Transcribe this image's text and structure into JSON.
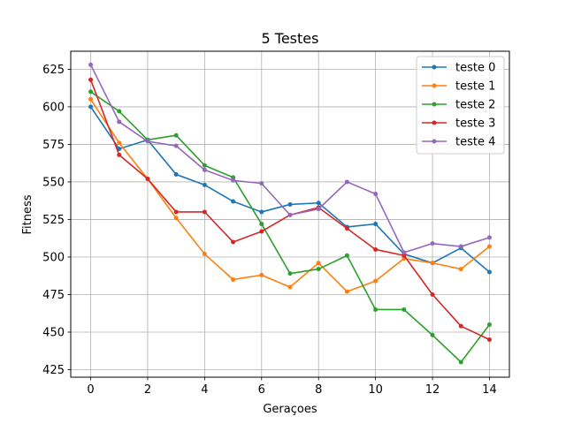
{
  "chart_data": {
    "type": "line",
    "title": "5 Testes",
    "xlabel": "Geraçoes",
    "ylabel": "Fitness",
    "xlim": [
      -0.7,
      14.7
    ],
    "ylim": [
      420,
      637
    ],
    "xticks": [
      0,
      2,
      4,
      6,
      8,
      10,
      12,
      14
    ],
    "yticks": [
      425,
      450,
      475,
      500,
      525,
      550,
      575,
      600,
      625
    ],
    "grid": true,
    "legend_position": "top-right",
    "x": [
      0,
      1,
      2,
      3,
      4,
      5,
      6,
      7,
      8,
      9,
      10,
      11,
      12,
      13,
      14
    ],
    "series": [
      {
        "name": "teste 0",
        "color": "#1f77b4",
        "values": [
          600,
          572,
          578,
          555,
          548,
          537,
          530,
          535,
          536,
          520,
          522,
          502,
          496,
          506,
          490
        ]
      },
      {
        "name": "teste 1",
        "color": "#ff7f0e",
        "values": [
          605,
          576,
          552,
          526,
          502,
          485,
          488,
          480,
          496,
          477,
          484,
          499,
          496,
          492,
          507
        ]
      },
      {
        "name": "teste 2",
        "color": "#2ca02c",
        "values": [
          610,
          597,
          578,
          581,
          561,
          553,
          522,
          489,
          492,
          501,
          465,
          465,
          448,
          430,
          455
        ]
      },
      {
        "name": "teste 3",
        "color": "#d62728",
        "values": [
          618,
          568,
          552,
          530,
          530,
          510,
          517,
          528,
          533,
          519,
          505,
          501,
          475,
          454,
          445
        ]
      },
      {
        "name": "teste 4",
        "color": "#9467bd",
        "values": [
          628,
          590,
          577,
          574,
          558,
          551,
          549,
          528,
          532,
          550,
          542,
          503,
          509,
          507,
          513
        ]
      }
    ]
  }
}
